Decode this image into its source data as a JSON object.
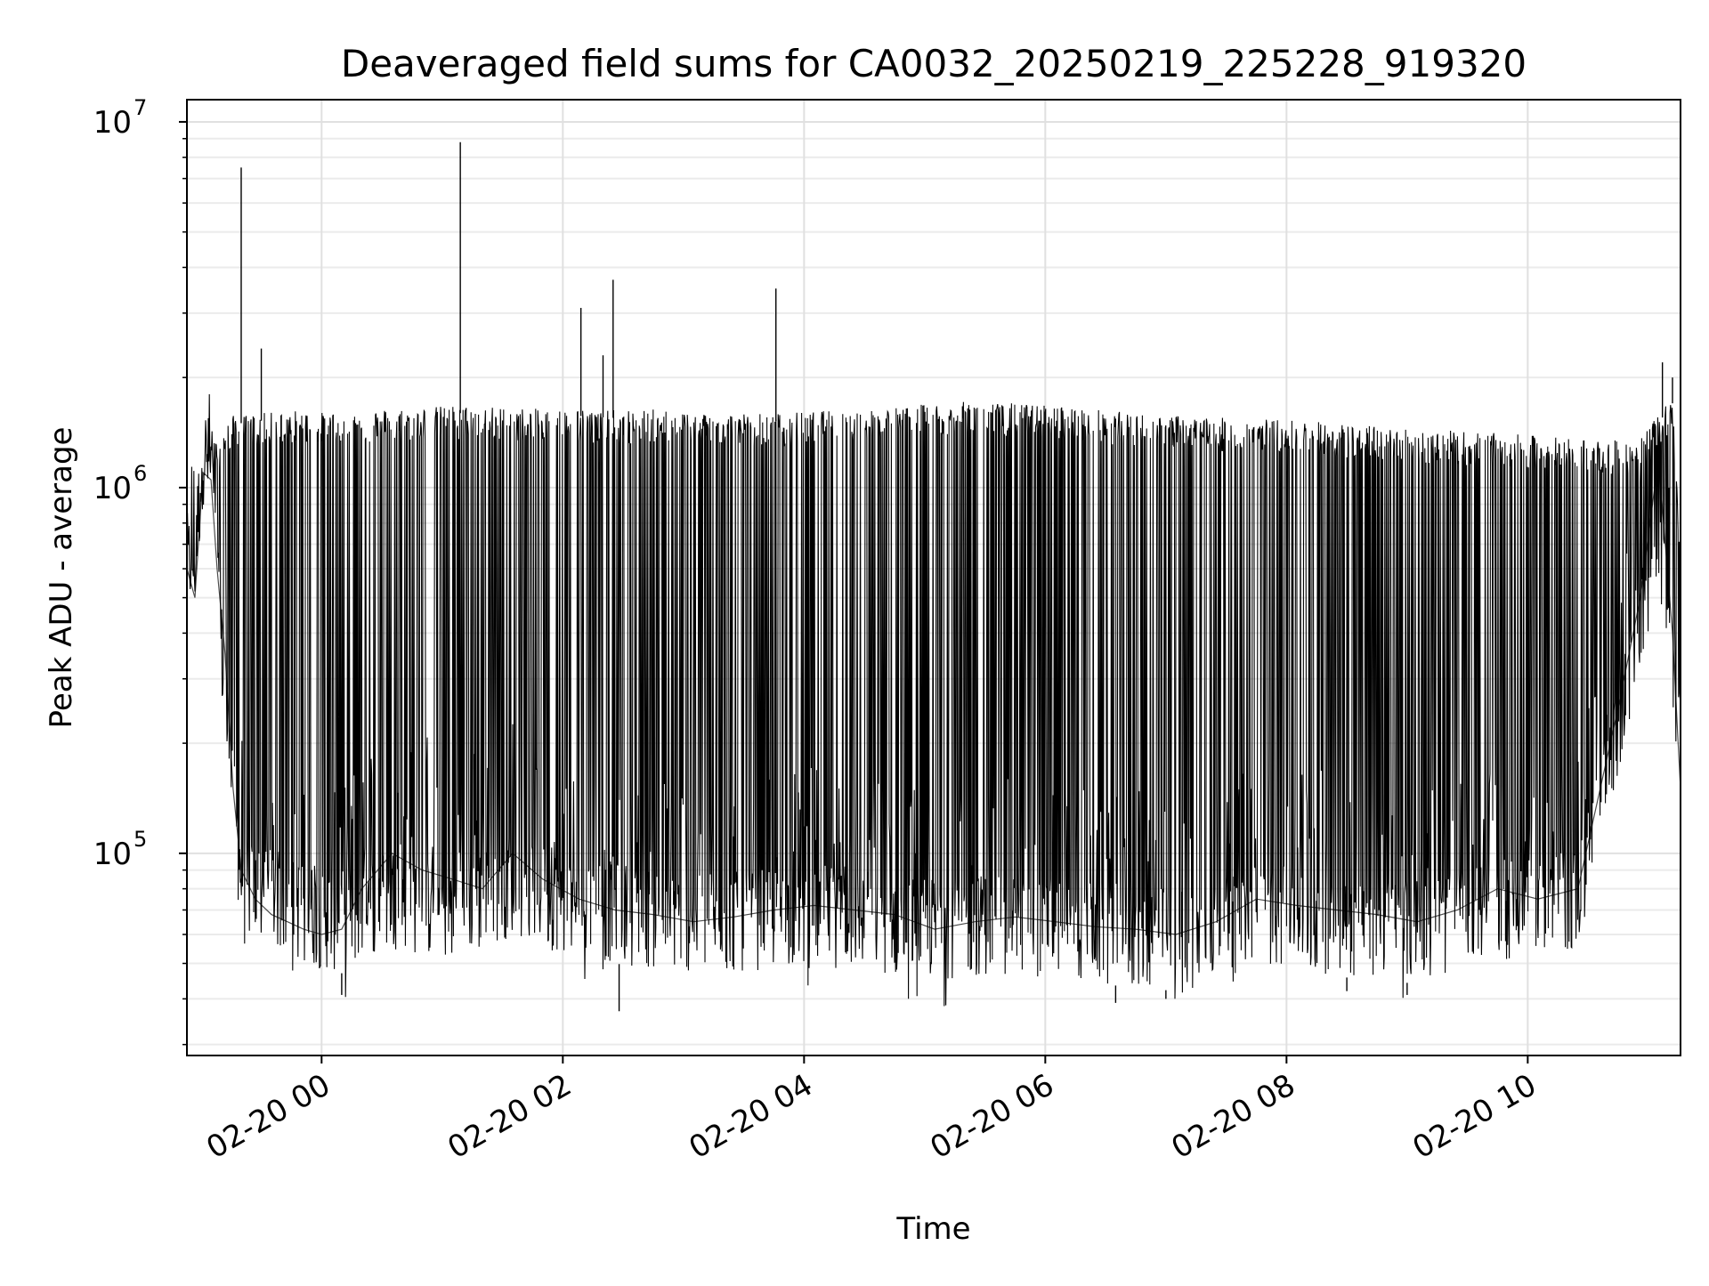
{
  "chart_data": {
    "type": "line",
    "title": "Deaveraged field sums for CA0032_20250219_225228_919320",
    "xlabel": "Time",
    "ylabel": "Peak ADU - average",
    "yscale": "log",
    "x_range": [
      "2025-02-19 22:53",
      "2025-02-20 11:16"
    ],
    "ylim": [
      28000,
      11500000
    ],
    "x_ticks": [
      {
        "value": "2025-02-20 00:00",
        "label": "02-20 00"
      },
      {
        "value": "2025-02-20 02:00",
        "label": "02-20 02"
      },
      {
        "value": "2025-02-20 04:00",
        "label": "02-20 04"
      },
      {
        "value": "2025-02-20 06:00",
        "label": "02-20 06"
      },
      {
        "value": "2025-02-20 08:00",
        "label": "02-20 08"
      },
      {
        "value": "2025-02-20 10:00",
        "label": "02-20 10"
      }
    ],
    "y_ticks": [
      {
        "value": 100000,
        "base": "10",
        "exp": "5"
      },
      {
        "value": 1000000,
        "base": "10",
        "exp": "6"
      },
      {
        "value": 10000000,
        "base": "10",
        "exp": "7"
      }
    ],
    "grid": true,
    "line_color": "#000000",
    "series": [
      {
        "x": [
          "2025-02-19 22:53",
          "2025-02-19 22:57",
          "2025-02-19 23:01",
          "2025-02-19 23:05",
          "2025-02-19 23:08",
          "2025-02-19 23:12",
          "2025-02-19 23:16",
          "2025-02-19 23:20",
          "2025-02-19 23:27",
          "2025-02-19 23:35",
          "2025-02-19 23:43",
          "2025-02-19 23:51",
          "2025-02-20 00:00",
          "2025-02-20 00:10",
          "2025-02-20 00:20",
          "2025-02-20 00:35",
          "2025-02-20 00:50",
          "2025-02-20 01:05",
          "2025-02-20 01:20",
          "2025-02-20 01:35",
          "2025-02-20 01:50",
          "2025-02-20 02:08",
          "2025-02-20 02:26",
          "2025-02-20 02:45",
          "2025-02-20 03:05",
          "2025-02-20 03:25",
          "2025-02-20 03:45",
          "2025-02-20 04:05",
          "2025-02-20 04:25",
          "2025-02-20 04:45",
          "2025-02-20 05:05",
          "2025-02-20 05:25",
          "2025-02-20 05:45",
          "2025-02-20 06:05",
          "2025-02-20 06:25",
          "2025-02-20 06:45",
          "2025-02-20 07:05",
          "2025-02-20 07:25",
          "2025-02-20 07:45",
          "2025-02-20 08:05",
          "2025-02-20 08:25",
          "2025-02-20 08:45",
          "2025-02-20 09:05",
          "2025-02-20 09:25",
          "2025-02-20 09:45",
          "2025-02-20 10:05",
          "2025-02-20 10:25",
          "2025-02-20 10:45",
          "2025-02-20 10:56",
          "2025-02-20 11:05",
          "2025-02-20 11:12",
          "2025-02-20 11:16"
        ],
        "y": [
          600000,
          500000,
          1100000,
          1050000,
          600000,
          350000,
          150000,
          90000,
          75000,
          68000,
          65000,
          62000,
          60000,
          62000,
          80000,
          100000,
          90000,
          85000,
          80000,
          100000,
          85000,
          75000,
          70000,
          68000,
          65000,
          67000,
          70000,
          72000,
          70000,
          68000,
          62000,
          65000,
          67000,
          65000,
          63000,
          62000,
          60000,
          65000,
          75000,
          72000,
          70000,
          68000,
          65000,
          70000,
          80000,
          75000,
          80000,
          250000,
          500000,
          1200000,
          400000,
          150000
        ],
        "envelope_high": [
          700000,
          600000,
          1200000,
          1250000,
          1300000,
          1400000,
          1500000,
          1500000,
          1520000,
          1530000,
          1550000,
          1550000,
          1530000,
          1540000,
          1560000,
          1570000,
          1580000,
          1600000,
          1590000,
          1580000,
          1560000,
          1570000,
          1550000,
          1560000,
          1540000,
          1530000,
          1520000,
          1540000,
          1560000,
          1580000,
          1620000,
          1640000,
          1620000,
          1600000,
          1560000,
          1520000,
          1500000,
          1480000,
          1470000,
          1460000,
          1430000,
          1400000,
          1380000,
          1360000,
          1340000,
          1320000,
          1300000,
          1280000,
          1300000,
          1500000,
          1700000,
          600000
        ],
        "envelope_low": [
          450000,
          450000,
          900000,
          800000,
          400000,
          180000,
          100000,
          60000,
          55000,
          55000,
          52000,
          50000,
          48000,
          47000,
          50000,
          55000,
          52000,
          50000,
          55000,
          60000,
          55000,
          52000,
          50000,
          48000,
          47000,
          47000,
          48000,
          49000,
          48000,
          46000,
          45000,
          46000,
          47000,
          45000,
          44000,
          43000,
          42000,
          44000,
          50000,
          48000,
          46000,
          45000,
          44000,
          47000,
          52000,
          50000,
          55000,
          150000,
          300000,
          500000,
          250000,
          140000
        ]
      }
    ],
    "spikes": [
      {
        "x": "2025-02-19 23:20",
        "y": 7500000
      },
      {
        "x": "2025-02-19 23:30",
        "y": 2400000
      },
      {
        "x": "2025-02-20 01:09",
        "y": 8800000
      },
      {
        "x": "2025-02-20 02:09",
        "y": 3100000
      },
      {
        "x": "2025-02-20 02:20",
        "y": 2300000
      },
      {
        "x": "2025-02-20 02:25",
        "y": 3700000
      },
      {
        "x": "2025-02-20 03:46",
        "y": 3500000
      },
      {
        "x": "2025-02-20 11:07",
        "y": 2200000
      },
      {
        "x": "2025-02-20 11:12",
        "y": 2000000
      }
    ],
    "dips": [
      {
        "x": "2025-02-20 00:10",
        "y": 41000
      },
      {
        "x": "2025-02-20 02:28",
        "y": 37000
      },
      {
        "x": "2025-02-20 06:35",
        "y": 39000
      },
      {
        "x": "2025-02-20 07:00",
        "y": 40000
      },
      {
        "x": "2025-02-20 08:30",
        "y": 42000
      },
      {
        "x": "2025-02-20 09:00",
        "y": 41000
      }
    ]
  }
}
